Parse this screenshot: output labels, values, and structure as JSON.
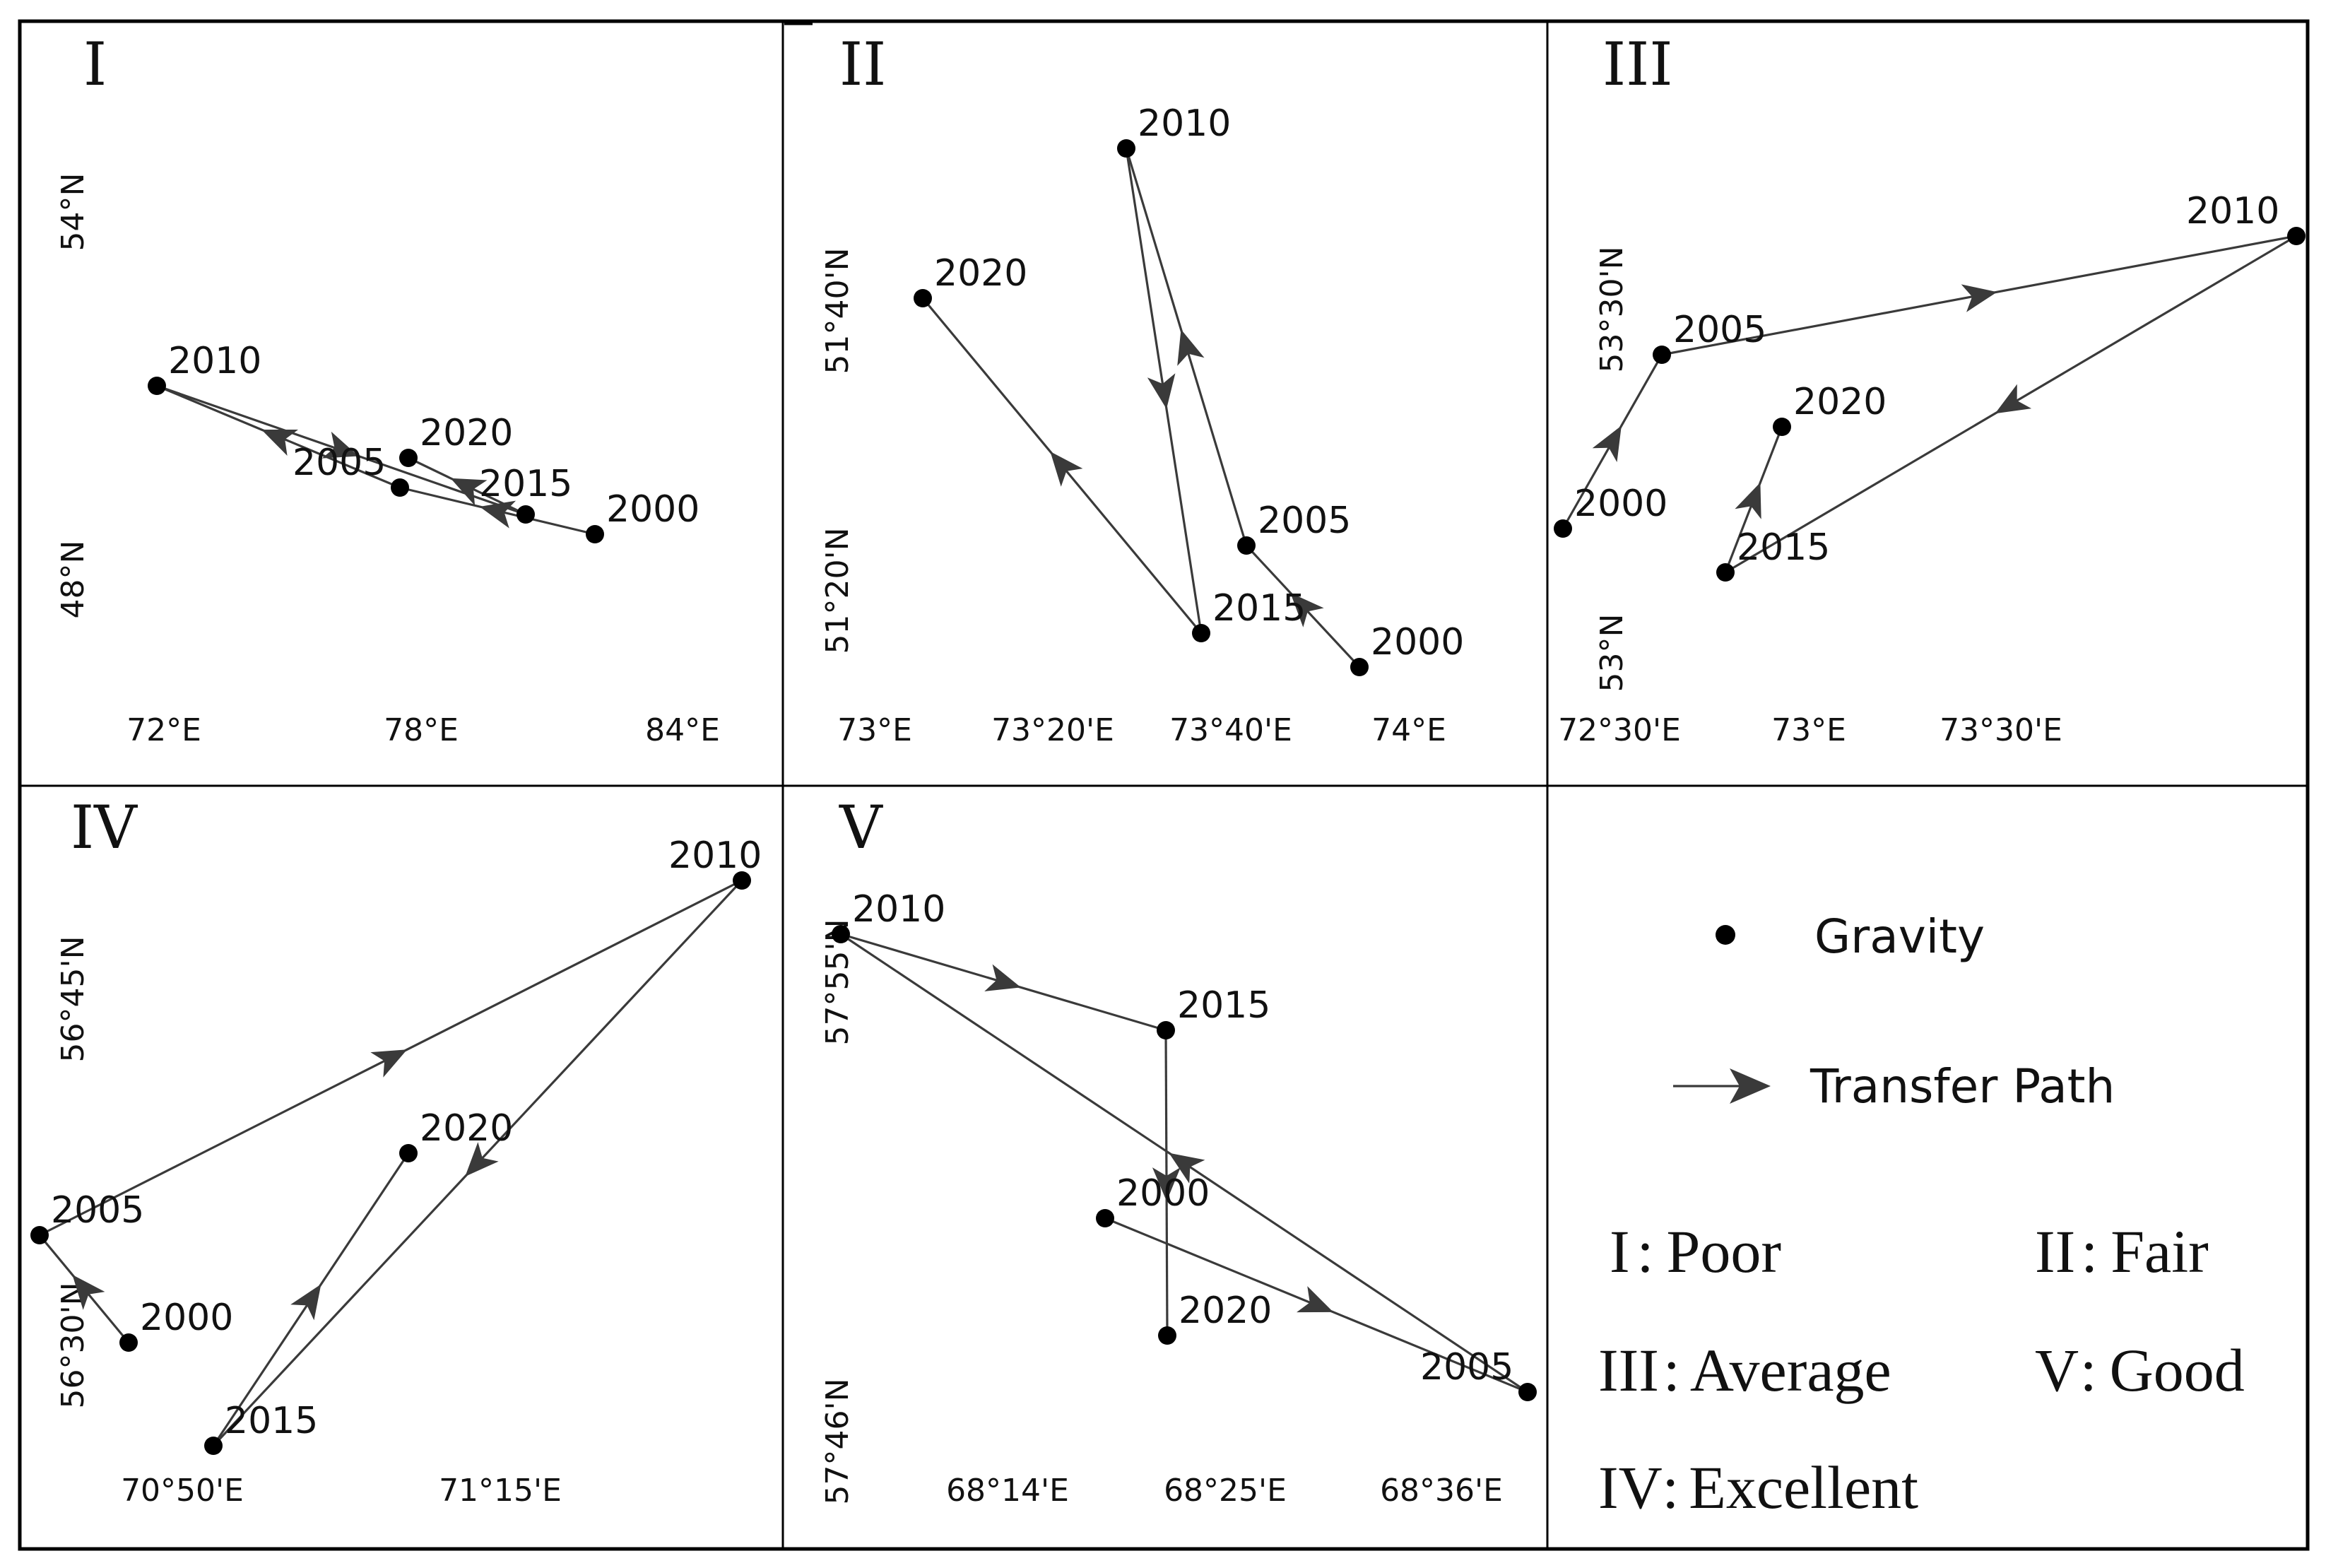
{
  "panels": [
    {
      "id": "I",
      "label": "I",
      "x_ticks": [
        "72°E",
        "78°E",
        "84°E"
      ],
      "y_ticks": [
        "54°N",
        "48°N"
      ],
      "points": [
        {
          "year": "2000"
        },
        {
          "year": "2005"
        },
        {
          "year": "2010"
        },
        {
          "year": "2015"
        },
        {
          "year": "2020"
        }
      ],
      "path_order": [
        "2000",
        "2005",
        "2010",
        "2015",
        "2020"
      ]
    },
    {
      "id": "II",
      "label": "II",
      "x_ticks": [
        "73°E",
        "73°20'E",
        "73°40'E",
        "74°E"
      ],
      "y_ticks": [
        "51°40'N",
        "51°20'N"
      ],
      "points": [
        {
          "year": "2000"
        },
        {
          "year": "2005"
        },
        {
          "year": "2010"
        },
        {
          "year": "2015"
        },
        {
          "year": "2020"
        }
      ],
      "path_order": [
        "2000",
        "2005",
        "2010",
        "2015",
        "2020"
      ]
    },
    {
      "id": "III",
      "label": "III",
      "x_ticks": [
        "72°30'E",
        "73°E",
        "73°30'E"
      ],
      "y_ticks": [
        "53°30'N",
        "53°N"
      ],
      "points": [
        {
          "year": "2000"
        },
        {
          "year": "2005"
        },
        {
          "year": "2010"
        },
        {
          "year": "2015"
        },
        {
          "year": "2020"
        }
      ],
      "path_order": [
        "2000",
        "2005",
        "2010",
        "2015",
        "2020"
      ]
    },
    {
      "id": "IV",
      "label": "IV",
      "x_ticks": [
        "70°50'E",
        "71°15'E"
      ],
      "y_ticks": [
        "56°45'N",
        "56°30'N"
      ],
      "points": [
        {
          "year": "2000"
        },
        {
          "year": "2005"
        },
        {
          "year": "2010"
        },
        {
          "year": "2015"
        },
        {
          "year": "2020"
        }
      ],
      "path_order": [
        "2000",
        "2005",
        "2010",
        "2015",
        "2020"
      ]
    },
    {
      "id": "V",
      "label": "V",
      "x_ticks": [
        "68°14'E",
        "68°25'E",
        "68°36'E"
      ],
      "y_ticks": [
        "57°55'N",
        "57°46'N"
      ],
      "points": [
        {
          "year": "2000"
        },
        {
          "year": "2005"
        },
        {
          "year": "2010"
        },
        {
          "year": "2015"
        },
        {
          "year": "2020"
        }
      ],
      "path_order": [
        "2000",
        "2005",
        "2010",
        "2015",
        "2020"
      ]
    }
  ],
  "legend": {
    "gravity_label": "Gravity",
    "path_label": "Transfer Path",
    "classes": [
      {
        "numeral": "I",
        "name": "Poor"
      },
      {
        "numeral": "II",
        "name": "Fair"
      },
      {
        "numeral": "III",
        "name": "Average"
      },
      {
        "numeral": "V",
        "name": "Good"
      },
      {
        "numeral": "IV",
        "name": "Excellent"
      }
    ]
  },
  "colors": {
    "path": "#3a3a3a",
    "point": "#000000",
    "frame": "#000000"
  }
}
